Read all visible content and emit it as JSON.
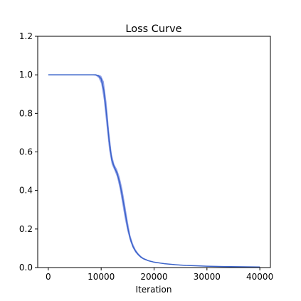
{
  "chart_data": {
    "type": "line",
    "title": "Loss Curve",
    "xlabel": "Iteration",
    "ylabel": "",
    "xlim": [
      -2000,
      42000
    ],
    "ylim": [
      0,
      1.2
    ],
    "xticks": [
      0,
      10000,
      20000,
      30000,
      40000
    ],
    "xtick_labels": [
      "0",
      "10000",
      "20000",
      "30000",
      "40000"
    ],
    "yticks": [
      0.0,
      0.2,
      0.4,
      0.6,
      0.8,
      1.0,
      1.2
    ],
    "ytick_labels": [
      "0.0",
      "0.2",
      "0.4",
      "0.6",
      "0.8",
      "1.0",
      "1.2"
    ],
    "grid": false,
    "colors": {
      "line": "#3b63c9",
      "band": "#6a7fe0"
    },
    "series": [
      {
        "x": [
          0,
          2000,
          4000,
          6000,
          8000,
          9000,
          9500,
          10000,
          10500,
          11000,
          11500,
          12000,
          12500,
          13000,
          13500,
          14000,
          14500,
          15000,
          15500,
          16000,
          16500,
          17000,
          17500,
          18000,
          19000,
          20000,
          22000,
          24000,
          26000,
          28000,
          30000,
          33000,
          36000,
          40000
        ],
        "y": [
          1.0,
          1.0,
          1.0,
          1.0,
          1.0,
          1.0,
          0.995,
          0.98,
          0.92,
          0.8,
          0.66,
          0.56,
          0.52,
          0.49,
          0.44,
          0.37,
          0.29,
          0.21,
          0.15,
          0.11,
          0.085,
          0.068,
          0.055,
          0.046,
          0.035,
          0.028,
          0.02,
          0.015,
          0.011,
          0.009,
          0.007,
          0.005,
          0.004,
          0.003
        ],
        "y_lower": [
          1.0,
          1.0,
          1.0,
          1.0,
          1.0,
          0.995,
          0.985,
          0.955,
          0.87,
          0.74,
          0.61,
          0.535,
          0.505,
          0.47,
          0.41,
          0.33,
          0.25,
          0.185,
          0.135,
          0.1,
          0.077,
          0.062,
          0.05,
          0.042,
          0.032,
          0.026,
          0.019,
          0.014,
          0.01,
          0.008,
          0.006,
          0.005,
          0.004,
          0.003
        ],
        "y_upper": [
          1.0,
          1.0,
          1.0,
          1.0,
          1.0,
          1.0,
          1.0,
          0.995,
          0.965,
          0.86,
          0.71,
          0.59,
          0.535,
          0.51,
          0.47,
          0.41,
          0.33,
          0.245,
          0.17,
          0.125,
          0.095,
          0.075,
          0.06,
          0.05,
          0.038,
          0.03,
          0.021,
          0.016,
          0.012,
          0.01,
          0.008,
          0.006,
          0.005,
          0.004
        ]
      }
    ]
  }
}
